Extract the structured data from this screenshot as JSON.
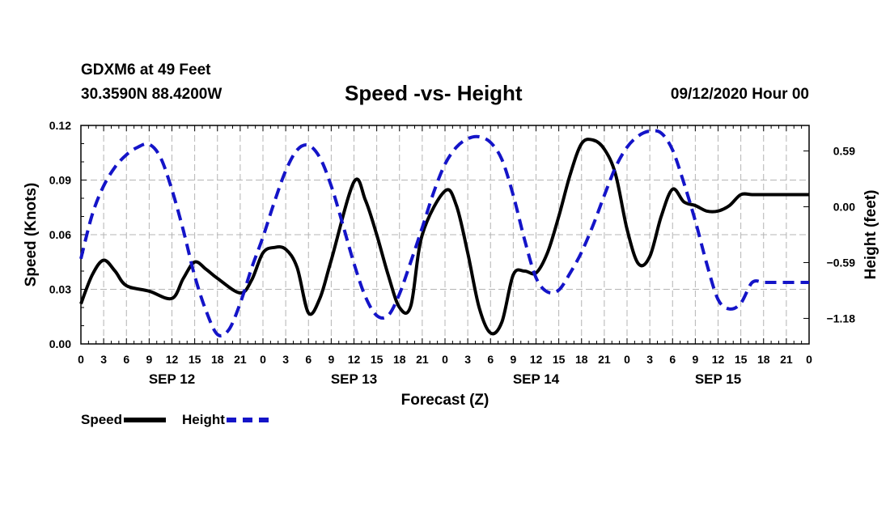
{
  "header": {
    "station": "GDXM6 at 49 Feet",
    "coords": "30.3590N 88.4200W",
    "title": "Speed -vs- Height",
    "datetime": "09/12/2020 Hour 00"
  },
  "legend": {
    "speed_label": "Speed",
    "height_label": "Height"
  },
  "colors": {
    "speed": "#000000",
    "height": "#1414c8",
    "grid": "#b4b4b4"
  },
  "chart_data": {
    "type": "line",
    "title": "Speed -vs- Height",
    "xlabel": "Forecast (Z)",
    "ylabel": "Speed (Knots)",
    "y2label": "Height (feet)",
    "x_range_hours": [
      0,
      96
    ],
    "ylim": [
      0,
      0.12
    ],
    "y2lim": [
      -1.45,
      0.86
    ],
    "y_ticks": [
      "0.00",
      "0.03",
      "0.06",
      "0.09",
      "0.12"
    ],
    "y2_ticks": [
      {
        "value": 0.59,
        "label": "0.59"
      },
      {
        "value": 0.0,
        "label": "0.00"
      },
      {
        "value": -0.59,
        "label": "−0.59"
      },
      {
        "value": -1.18,
        "label": "−1.18"
      }
    ],
    "x_tick_labels": [
      "0",
      "3",
      "6",
      "9",
      "12",
      "15",
      "18",
      "21",
      "0",
      "3",
      "6",
      "9",
      "12",
      "15",
      "18",
      "21",
      "0",
      "3",
      "6",
      "9",
      "12",
      "15",
      "18",
      "21",
      "0",
      "3",
      "6",
      "9",
      "12",
      "15",
      "18",
      "21",
      "0"
    ],
    "date_labels": [
      {
        "hour": 12,
        "label": "SEP 12"
      },
      {
        "hour": 36,
        "label": "SEP 13"
      },
      {
        "hour": 60,
        "label": "SEP 14"
      },
      {
        "hour": 84,
        "label": "SEP 15"
      }
    ],
    "grid": true,
    "series": [
      {
        "name": "Speed",
        "axis": "left",
        "style": "solid",
        "x": [
          0,
          1.5,
          3,
          4.5,
          6,
          9,
          12,
          13.5,
          15,
          16.5,
          18,
          21,
          22.5,
          24,
          25.5,
          27,
          28.5,
          30,
          31.5,
          33,
          36,
          37.5,
          39,
          40.5,
          42,
          43.5,
          45,
          48,
          49.5,
          51,
          52.5,
          54,
          55.5,
          57,
          58.5,
          60,
          61.5,
          63,
          64.5,
          66,
          67.5,
          69,
          70.5,
          72,
          73.5,
          75,
          76.5,
          78,
          79.5,
          81,
          82.5,
          84,
          85.5,
          87,
          88.5,
          90,
          91.5,
          93,
          94.5,
          96
        ],
        "y": [
          0.022,
          0.038,
          0.046,
          0.04,
          0.032,
          0.029,
          0.025,
          0.036,
          0.045,
          0.041,
          0.036,
          0.028,
          0.035,
          0.05,
          0.053,
          0.052,
          0.042,
          0.017,
          0.025,
          0.046,
          0.089,
          0.079,
          0.06,
          0.038,
          0.02,
          0.021,
          0.06,
          0.084,
          0.076,
          0.05,
          0.02,
          0.006,
          0.012,
          0.038,
          0.04,
          0.039,
          0.05,
          0.07,
          0.093,
          0.11,
          0.112,
          0.107,
          0.093,
          0.063,
          0.044,
          0.048,
          0.07,
          0.085,
          0.078,
          0.076,
          0.073,
          0.073,
          0.076,
          0.082,
          0.082,
          0.082,
          0.082,
          0.082,
          0.082,
          0.082
        ]
      },
      {
        "name": "Height",
        "axis": "right",
        "style": "dashed",
        "x": [
          0,
          1.5,
          3,
          4.5,
          6,
          7.5,
          9,
          10.5,
          12,
          13.5,
          15,
          16.5,
          18,
          19.5,
          21,
          22.5,
          24,
          25.5,
          27,
          28.5,
          30,
          31.5,
          33,
          34.5,
          36,
          37.5,
          39,
          40.5,
          42,
          43.5,
          45,
          46.5,
          48,
          49.5,
          51,
          52.5,
          54,
          55.5,
          57,
          58.5,
          60,
          61.5,
          63,
          64.5,
          66,
          67.5,
          69,
          70.5,
          72,
          73.5,
          75,
          76.5,
          78,
          79.5,
          81,
          82.5,
          84,
          85.5,
          87,
          88.5,
          90,
          91.5,
          93,
          94.5,
          96
        ],
        "y": [
          -0.55,
          -0.08,
          0.22,
          0.42,
          0.55,
          0.63,
          0.66,
          0.52,
          0.18,
          -0.25,
          -0.73,
          -1.1,
          -1.35,
          -1.3,
          -1.02,
          -0.65,
          -0.32,
          0.05,
          0.38,
          0.6,
          0.65,
          0.52,
          0.22,
          -0.18,
          -0.6,
          -0.95,
          -1.15,
          -1.15,
          -0.92,
          -0.58,
          -0.22,
          0.15,
          0.45,
          0.63,
          0.72,
          0.74,
          0.68,
          0.5,
          0.12,
          -0.35,
          -0.75,
          -0.9,
          -0.88,
          -0.7,
          -0.48,
          -0.2,
          0.12,
          0.42,
          0.63,
          0.75,
          0.8,
          0.78,
          0.6,
          0.25,
          -0.15,
          -0.6,
          -0.98,
          -1.08,
          -1.02,
          -0.8,
          -0.8,
          -0.8,
          -0.8,
          -0.8,
          -0.8
        ]
      }
    ]
  }
}
